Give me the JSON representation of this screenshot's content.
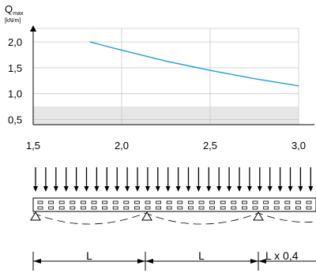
{
  "chart_data": {
    "type": "line",
    "ylabel_main": "Q",
    "ylabel_sub": "max",
    "ylabel_unit": "[kN/m]",
    "x_ticks": [
      "1,5",
      "2,0",
      "2,5",
      "3,0"
    ],
    "y_ticks": [
      "0,5",
      "1,0",
      "1,5",
      "2,0"
    ],
    "xlim": [
      1.5,
      3.0
    ],
    "ylim": [
      0.4,
      2.2
    ],
    "grid": true,
    "shaded_band": [
      0.4,
      0.75
    ],
    "series": [
      {
        "color": "#1aa0d8",
        "x": [
          1.82,
          2.0,
          2.25,
          2.5,
          2.75,
          3.0
        ],
        "y": [
          2.0,
          1.84,
          1.63,
          1.45,
          1.29,
          1.15
        ]
      }
    ]
  },
  "diagram": {
    "spans": [
      "L",
      "L",
      "L x 0,4"
    ]
  }
}
